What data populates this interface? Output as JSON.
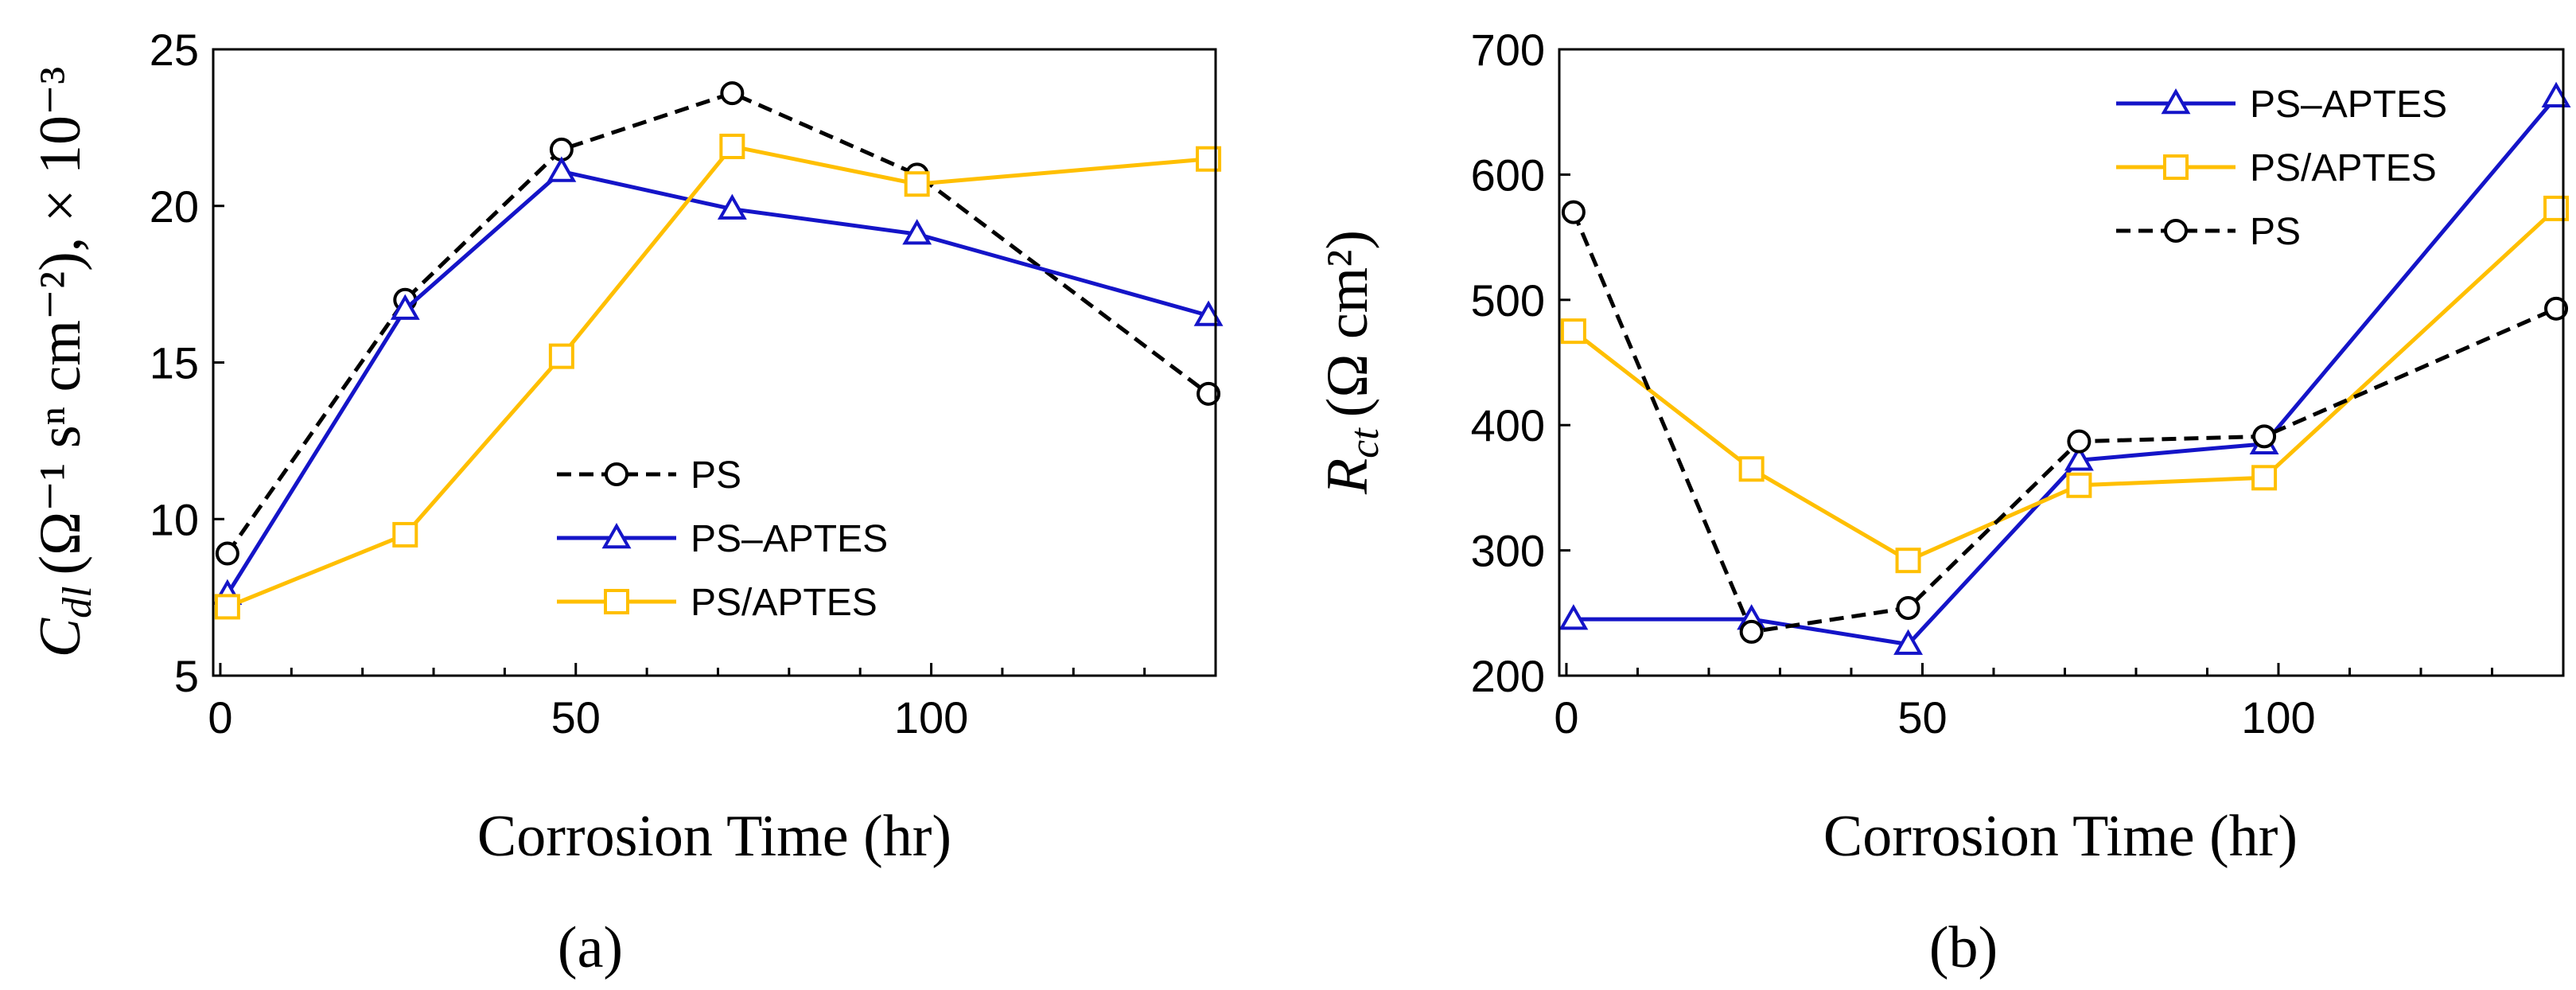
{
  "colors": {
    "PS": "#000000",
    "PS–APTES": "#1414C8",
    "PS/APTES": "#FFBF00"
  },
  "chart_data": [
    {
      "type": "line",
      "panel_label": "(a)",
      "xlabel": "Corrosion Time (hr)",
      "ylabel": {
        "symbol": "C",
        "subscript": "dl",
        "units": "(Ω⁻¹ sⁿ cm⁻²),  × 10⁻³"
      },
      "xlim": [
        -1,
        140
      ],
      "ylim": [
        5,
        25
      ],
      "xticks": [
        0,
        50,
        100
      ],
      "yticks": [
        5,
        10,
        15,
        20,
        25
      ],
      "legend": [
        "PS",
        "PS–APTES",
        "PS/APTES"
      ],
      "series": [
        {
          "name": "PS",
          "marker": "circle",
          "style": "dashed",
          "x": [
            1,
            26,
            48,
            72,
            98,
            139
          ],
          "values": [
            8.9,
            17.0,
            21.8,
            23.6,
            21.0,
            14.0
          ]
        },
        {
          "name": "PS–APTES",
          "marker": "triangle",
          "style": "solid",
          "x": [
            1,
            26,
            48,
            72,
            98,
            139
          ],
          "values": [
            7.6,
            16.7,
            21.1,
            19.9,
            19.1,
            16.5
          ]
        },
        {
          "name": "PS/APTES",
          "marker": "square",
          "style": "solid",
          "x": [
            1,
            26,
            48,
            72,
            98,
            139
          ],
          "values": [
            7.2,
            9.5,
            15.2,
            21.9,
            20.7,
            21.5
          ]
        }
      ]
    },
    {
      "type": "line",
      "panel_label": "(b)",
      "xlabel": "Corrosion Time (hr)",
      "ylabel": {
        "symbol": "R",
        "subscript": "ct",
        "units": "(Ω cm²)"
      },
      "xlim": [
        -1,
        140
      ],
      "ylim": [
        200,
        700
      ],
      "xticks": [
        0,
        50,
        100
      ],
      "yticks": [
        200,
        300,
        400,
        500,
        600,
        700
      ],
      "legend": [
        "PS–APTES",
        "PS/APTES",
        "PS"
      ],
      "series": [
        {
          "name": "PS–APTES",
          "marker": "triangle",
          "style": "solid",
          "x": [
            1,
            26,
            48,
            72,
            98,
            139
          ],
          "values": [
            245,
            245,
            225,
            372,
            385,
            662
          ]
        },
        {
          "name": "PS/APTES",
          "marker": "square",
          "style": "solid",
          "x": [
            1,
            26,
            48,
            72,
            98,
            139
          ],
          "values": [
            475,
            365,
            292,
            352,
            358,
            573
          ]
        },
        {
          "name": "PS",
          "marker": "circle",
          "style": "dashed",
          "x": [
            1,
            26,
            48,
            72,
            98,
            139
          ],
          "values": [
            570,
            235,
            254,
            387,
            391,
            493
          ]
        }
      ]
    }
  ]
}
